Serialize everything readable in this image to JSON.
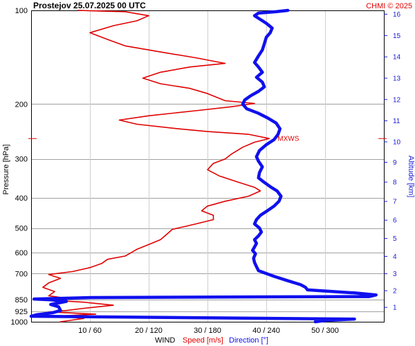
{
  "header": {
    "title": "Prostejov   25.07.2025 00 UTC",
    "credit": "CHMI © 2025"
  },
  "colors": {
    "speed": "#e00000",
    "direction": "#1010ee",
    "grid": "#a0a0a0",
    "altitude_axis": "#1a1ad6"
  },
  "chart_data": {
    "type": "line",
    "pressure_axis": {
      "label": "Pressure [hPa]",
      "scale": "log",
      "range": [
        100,
        1000
      ],
      "ticks": [
        100,
        200,
        300,
        400,
        500,
        600,
        700,
        850,
        925,
        1000
      ]
    },
    "altitude_axis": {
      "label": "Altitude [km]",
      "ticks": [
        1,
        2,
        3,
        4,
        5,
        6,
        7,
        8,
        9,
        10,
        11,
        12,
        13,
        14,
        15,
        16
      ]
    },
    "x_axis": {
      "title": "WIND",
      "speed_label": "Speed [m/s]",
      "direction_label": "Direction [°]",
      "tick_labels": [
        "10 / 60",
        "20 / 120",
        "30 / 180",
        "40 / 240",
        "50 / 300"
      ],
      "speed_range": [
        0,
        60
      ],
      "direction_range": [
        0,
        360
      ]
    },
    "max_wind_label": "MXWS",
    "max_wind_level_hpa": 258,
    "series": [
      {
        "name": "Speed [m/s]",
        "unit": "m/s",
        "points": [
          [
            1000,
            5
          ],
          [
            975,
            9
          ],
          [
            960,
            4
          ],
          [
            945,
            11
          ],
          [
            930,
            3
          ],
          [
            920,
            6
          ],
          [
            905,
            9
          ],
          [
            885,
            14
          ],
          [
            865,
            9
          ],
          [
            850,
            2
          ],
          [
            840,
            6
          ],
          [
            825,
            3
          ],
          [
            800,
            4
          ],
          [
            775,
            2
          ],
          [
            750,
            3
          ],
          [
            725,
            5
          ],
          [
            705,
            3
          ],
          [
            690,
            7
          ],
          [
            670,
            10
          ],
          [
            650,
            12
          ],
          [
            630,
            13
          ],
          [
            615,
            16
          ],
          [
            600,
            17
          ],
          [
            585,
            18
          ],
          [
            565,
            20
          ],
          [
            545,
            22
          ],
          [
            525,
            23
          ],
          [
            505,
            24
          ],
          [
            495,
            26
          ],
          [
            485,
            28
          ],
          [
            470,
            31
          ],
          [
            455,
            31
          ],
          [
            440,
            29
          ],
          [
            425,
            30
          ],
          [
            410,
            33
          ],
          [
            395,
            37
          ],
          [
            380,
            39
          ],
          [
            370,
            38
          ],
          [
            355,
            35
          ],
          [
            340,
            32
          ],
          [
            325,
            30
          ],
          [
            310,
            31
          ],
          [
            300,
            33
          ],
          [
            290,
            34
          ],
          [
            275,
            36
          ],
          [
            265,
            38
          ],
          [
            258,
            40.5
          ],
          [
            250,
            37
          ],
          [
            245,
            30
          ],
          [
            240,
            25
          ],
          [
            232,
            18
          ],
          [
            225,
            15
          ],
          [
            218,
            20
          ],
          [
            210,
            28
          ],
          [
            204,
            34
          ],
          [
            199,
            38
          ],
          [
            195,
            33
          ],
          [
            185,
            30
          ],
          [
            178,
            27
          ],
          [
            172,
            22
          ],
          [
            165,
            19
          ],
          [
            158,
            22
          ],
          [
            152,
            27
          ],
          [
            148,
            33
          ],
          [
            142,
            28
          ],
          [
            136,
            22
          ],
          [
            130,
            16
          ],
          [
            124,
            13
          ],
          [
            118,
            10
          ],
          [
            112,
            14
          ],
          [
            108,
            18
          ],
          [
            104,
            20
          ],
          [
            101,
            16
          ],
          [
            100,
            8
          ]
        ]
      },
      {
        "name": "Direction [°]",
        "unit": "°",
        "points": [
          [
            1000,
            290
          ],
          [
            990,
            301
          ],
          [
            985,
            316
          ],
          [
            980,
            330
          ],
          [
            960,
            0
          ],
          [
            950,
            5
          ],
          [
            935,
            22
          ],
          [
            920,
            30
          ],
          [
            895,
            28
          ],
          [
            880,
            20
          ],
          [
            860,
            36
          ],
          [
            850,
            20
          ],
          [
            845,
            3
          ],
          [
            836,
            62
          ],
          [
            832,
            215
          ],
          [
            830,
            345
          ],
          [
            820,
            352
          ],
          [
            808,
            330
          ],
          [
            790,
            282
          ],
          [
            775,
            280
          ],
          [
            760,
            275
          ],
          [
            735,
            260
          ],
          [
            715,
            248
          ],
          [
            700,
            240
          ],
          [
            685,
            232
          ],
          [
            665,
            230
          ],
          [
            645,
            228
          ],
          [
            625,
            227
          ],
          [
            605,
            229
          ],
          [
            590,
            226
          ],
          [
            575,
            228
          ],
          [
            560,
            230
          ],
          [
            545,
            228
          ],
          [
            530,
            232
          ],
          [
            515,
            235
          ],
          [
            500,
            233
          ],
          [
            485,
            228
          ],
          [
            470,
            230
          ],
          [
            455,
            234
          ],
          [
            440,
            241
          ],
          [
            425,
            248
          ],
          [
            410,
            253
          ],
          [
            395,
            255
          ],
          [
            380,
            251
          ],
          [
            370,
            245
          ],
          [
            355,
            237
          ],
          [
            345,
            232
          ],
          [
            332,
            233
          ],
          [
            318,
            236
          ],
          [
            305,
            232
          ],
          [
            295,
            230
          ],
          [
            282,
            233
          ],
          [
            270,
            240
          ],
          [
            260,
            248
          ],
          [
            250,
            252
          ],
          [
            240,
            254
          ],
          [
            230,
            250
          ],
          [
            222,
            242
          ],
          [
            214,
            232
          ],
          [
            207,
            220
          ],
          [
            200,
            216
          ],
          [
            194,
            218
          ],
          [
            188,
            224
          ],
          [
            182,
            232
          ],
          [
            176,
            238
          ],
          [
            170,
            236
          ],
          [
            164,
            230
          ],
          [
            158,
            236
          ],
          [
            152,
            232
          ],
          [
            147,
            228
          ],
          [
            140,
            232
          ],
          [
            134,
            236
          ],
          [
            128,
            238
          ],
          [
            122,
            240
          ],
          [
            118,
            244
          ],
          [
            114,
            246
          ],
          [
            110,
            240
          ],
          [
            106,
            232
          ],
          [
            104,
            228
          ],
          [
            102,
            232
          ],
          [
            101,
            250
          ],
          [
            100,
            262
          ]
        ]
      }
    ],
    "grid": true
  }
}
